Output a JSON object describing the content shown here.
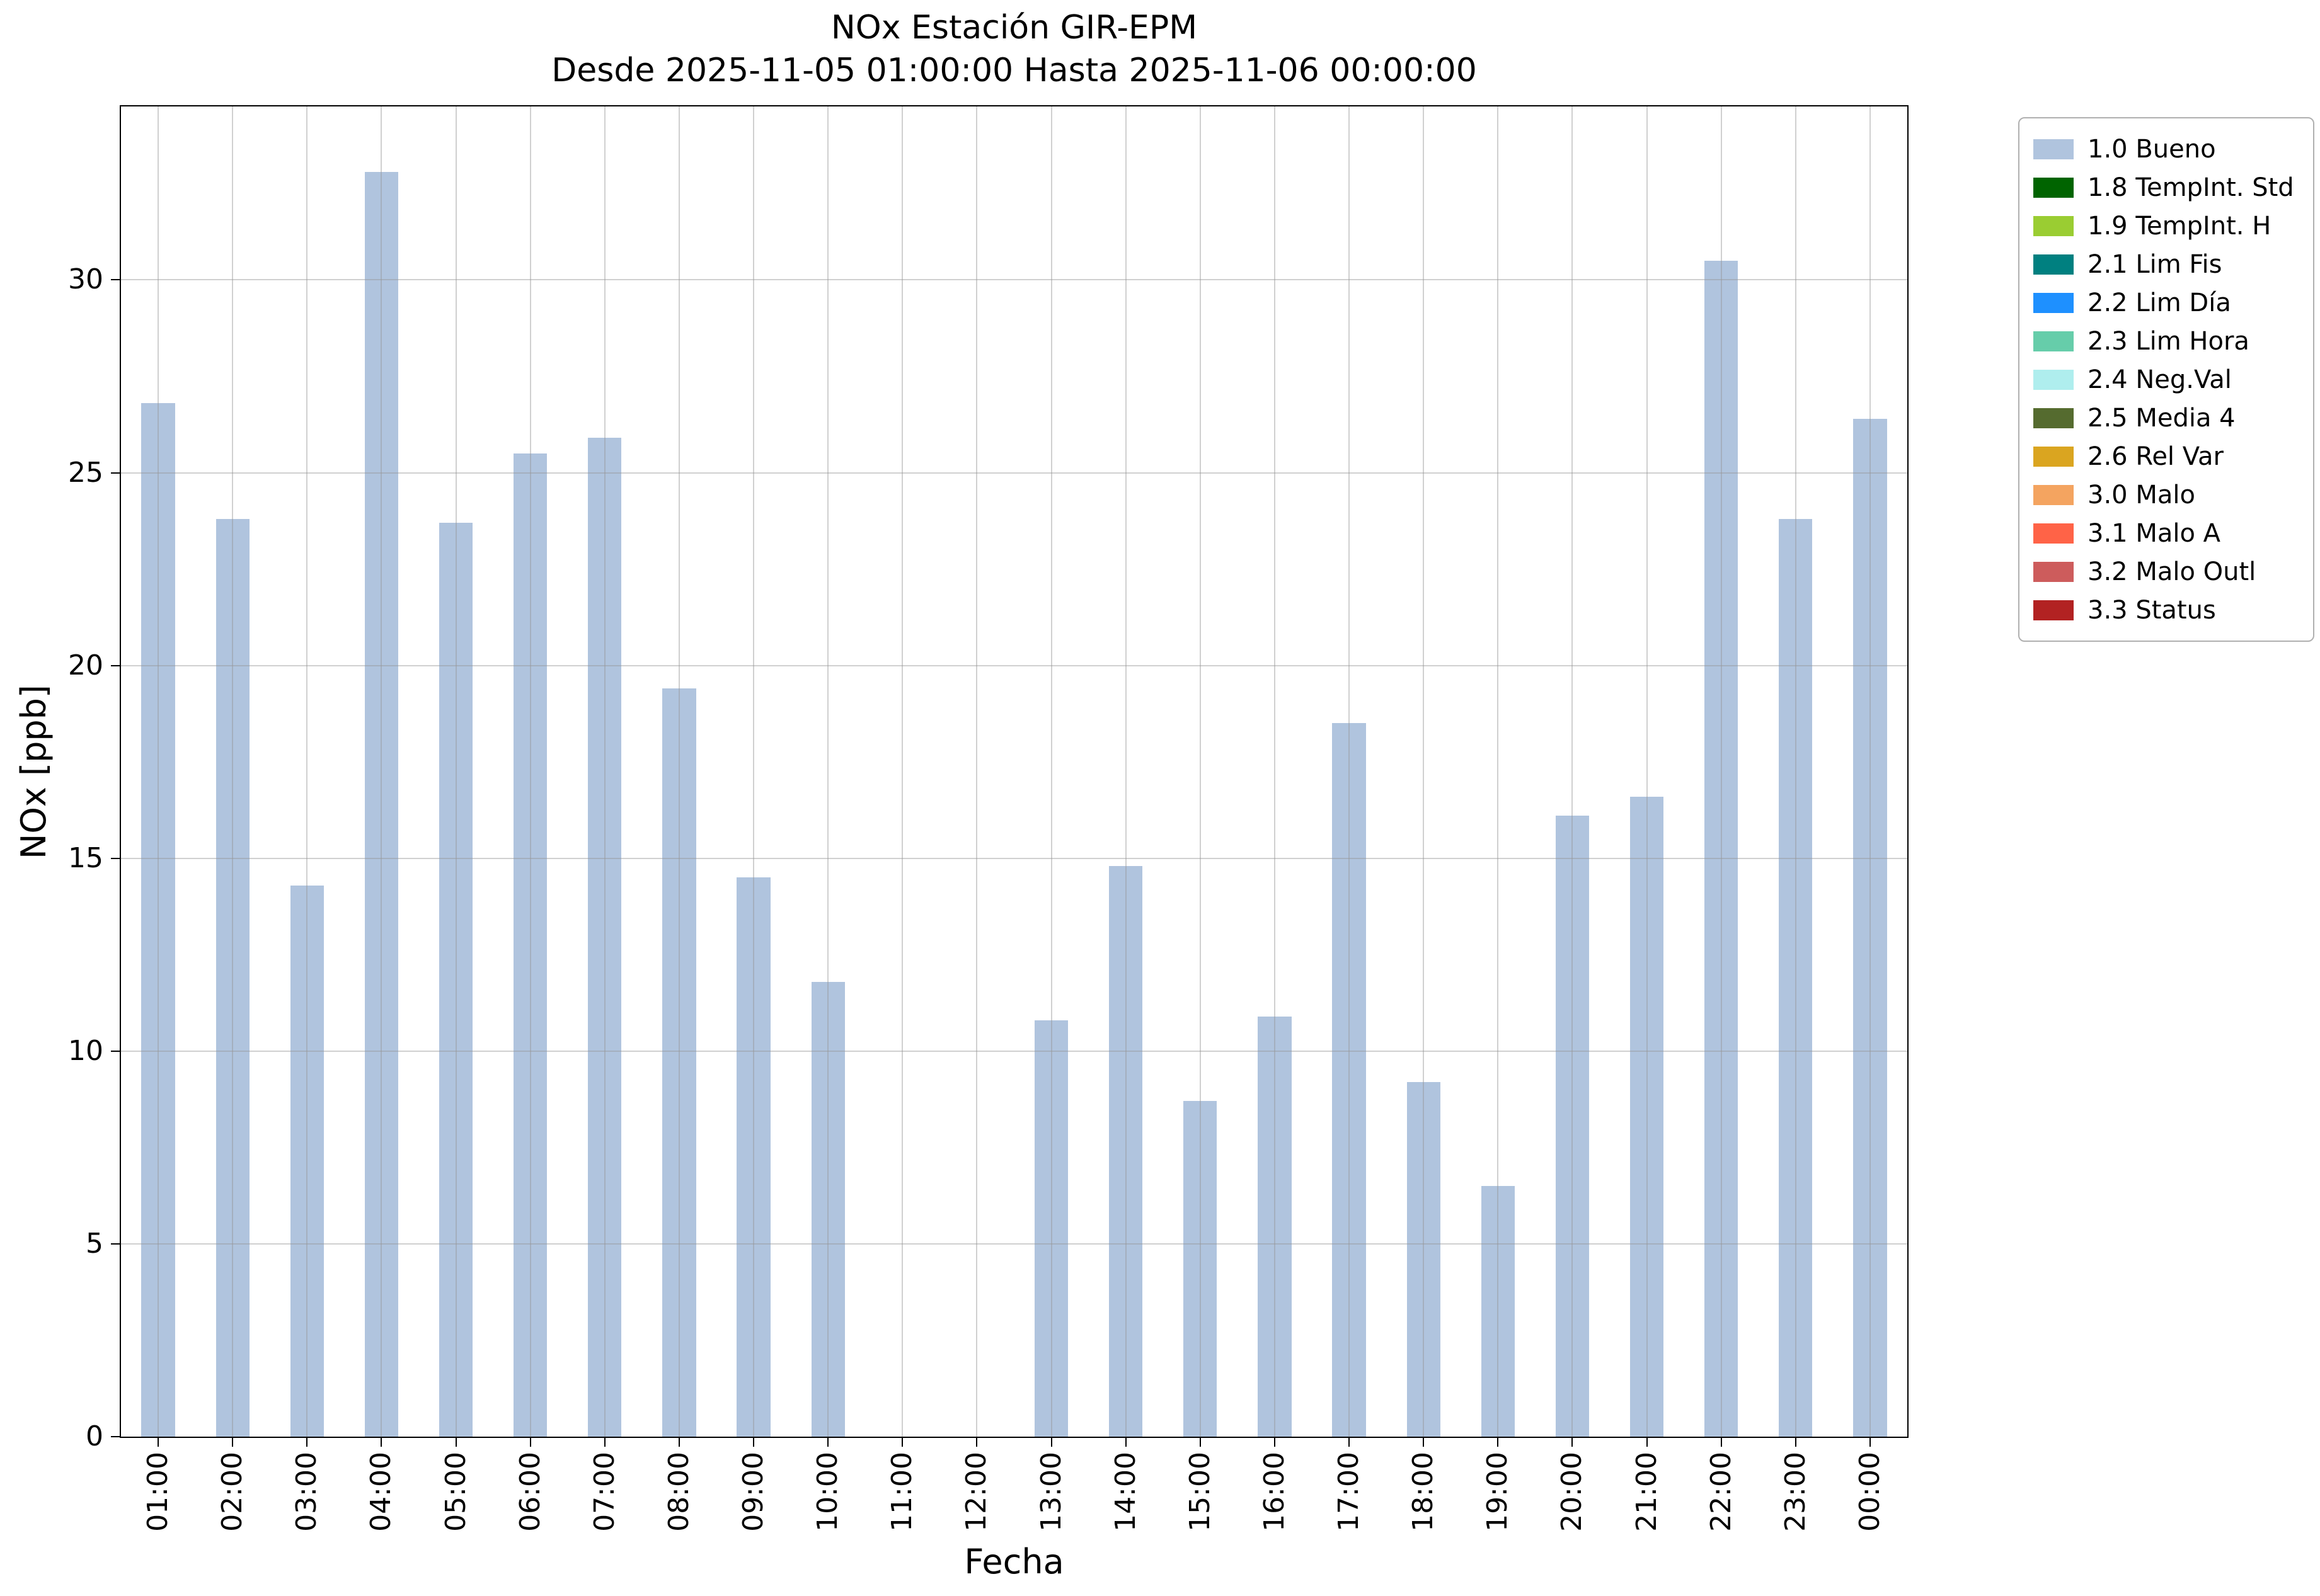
{
  "title": "NOx Estación GIR-EPM",
  "subtitle": "Desde 2025-11-05 01:00:00 Hasta 2025-11-06 00:00:00",
  "chart_data": {
    "type": "bar",
    "title": "NOx Estación GIR-EPM",
    "subtitle": "Desde 2025-11-05 01:00:00 Hasta 2025-11-06 00:00:00",
    "xlabel": "Fecha",
    "ylabel": "NOx [ppb]",
    "categories": [
      "01:00",
      "02:00",
      "03:00",
      "04:00",
      "05:00",
      "06:00",
      "07:00",
      "08:00",
      "09:00",
      "10:00",
      "11:00",
      "12:00",
      "13:00",
      "14:00",
      "15:00",
      "16:00",
      "17:00",
      "18:00",
      "19:00",
      "20:00",
      "21:00",
      "22:00",
      "23:00",
      "00:00"
    ],
    "values": [
      26.8,
      23.8,
      14.3,
      32.8,
      23.7,
      25.5,
      25.9,
      19.4,
      14.5,
      11.8,
      0,
      0,
      10.8,
      14.8,
      8.7,
      10.9,
      18.5,
      9.2,
      6.5,
      16.1,
      16.6,
      30.5,
      23.8,
      26.4
    ],
    "bar_color": "#b0c4de",
    "bar_series_name": "1.0 Bueno",
    "ylim": [
      0,
      34.5
    ],
    "yticks": [
      0,
      5,
      10,
      15,
      20,
      25,
      30
    ],
    "grid": true,
    "legend_position": "outside upper right",
    "legend": [
      {
        "label": "1.0 Bueno",
        "color": "#b0c4de"
      },
      {
        "label": "1.8 TempInt. Std",
        "color": "#006400"
      },
      {
        "label": "1.9 TempInt. H",
        "color": "#9acd32"
      },
      {
        "label": "2.1 Lim Fis",
        "color": "#008080"
      },
      {
        "label": "2.2 Lim Día",
        "color": "#1e90ff"
      },
      {
        "label": "2.3 Lim Hora",
        "color": "#66cdaa"
      },
      {
        "label": "2.4 Neg.Val",
        "color": "#afeeee"
      },
      {
        "label": "2.5 Media 4",
        "color": "#556b2f"
      },
      {
        "label": "2.6 Rel Var",
        "color": "#daa520"
      },
      {
        "label": "3.0 Malo",
        "color": "#f4a460"
      },
      {
        "label": "3.1 Malo A",
        "color": "#ff6347"
      },
      {
        "label": "3.2 Malo Outl",
        "color": "#cd5c5c"
      },
      {
        "label": "3.3 Status",
        "color": "#b22222"
      }
    ]
  }
}
